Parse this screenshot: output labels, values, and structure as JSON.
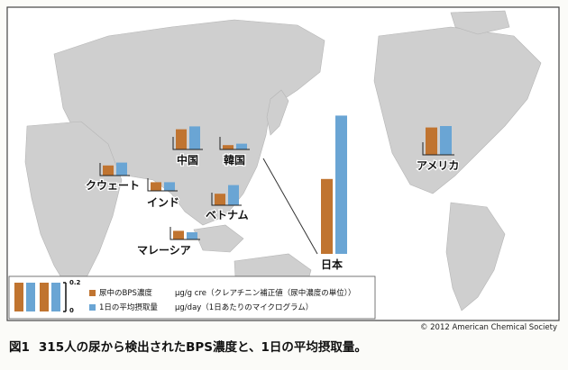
{
  "chart_data": {
    "type": "bar",
    "categories": [
      "クウェート",
      "インド",
      "中国",
      "韓国",
      "ベトナム",
      "マレーシア",
      "日本",
      "アメリカ"
    ],
    "series": [
      {
        "name": "尿中のBPS濃度",
        "unit": "μg/g cre（クレアチニン補正値（尿中濃度の単位））",
        "values": [
          0.07,
          0.06,
          0.14,
          0.03,
          0.08,
          0.06,
          0.52,
          0.19
        ]
      },
      {
        "name": "1日の平均摂取量",
        "unit": "μg/day（1日あたりのマイクログラム）",
        "values": [
          0.09,
          0.06,
          0.16,
          0.04,
          0.14,
          0.05,
          0.96,
          0.2
        ]
      }
    ],
    "legend_scale_ticks": [
      "0.2",
      "0"
    ],
    "colors": {
      "series_1": "#c07430",
      "series_2": "#6aa5d4",
      "map_land": "#c8c8c8",
      "map_water": "#ffffff"
    }
  },
  "copyright": "© 2012 American Chemical Society",
  "caption": {
    "figure": "図1",
    "text": "315人の尿から検出されたBPS濃度と、1日の平均摂取量。"
  }
}
